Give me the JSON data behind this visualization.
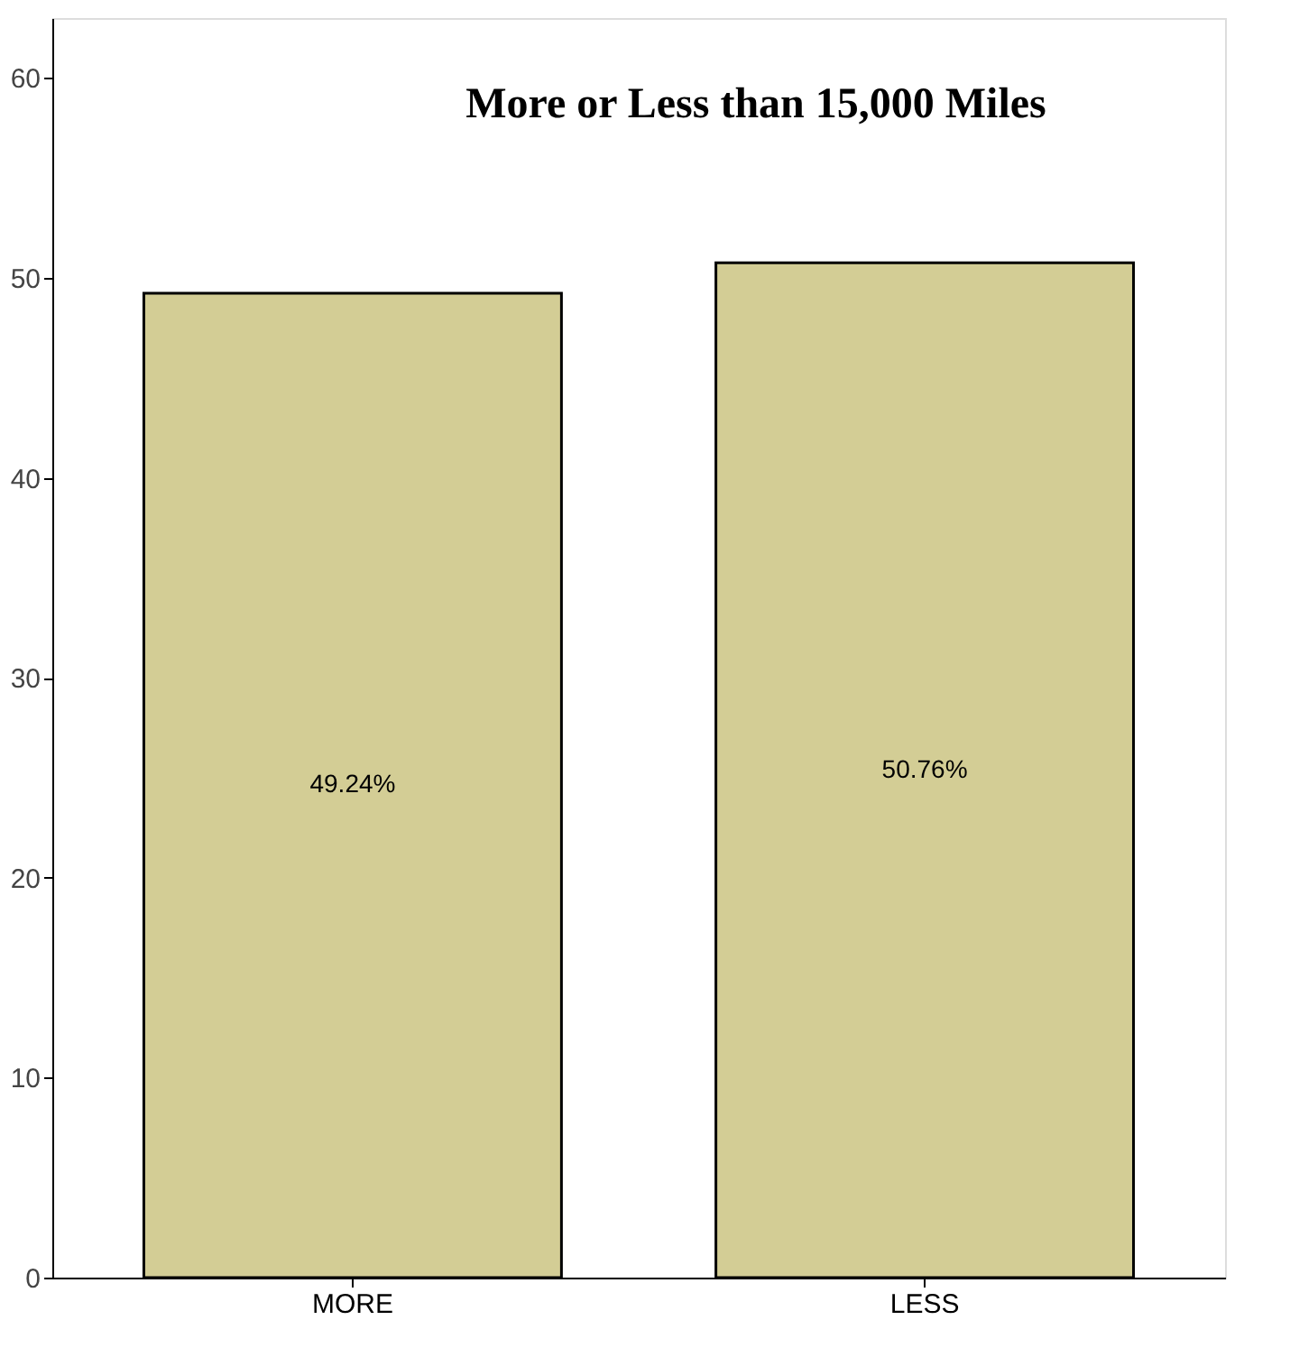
{
  "chart_data": {
    "type": "bar",
    "title": "More or Less than 15,000 Miles",
    "categories": [
      "MORE",
      "LESS"
    ],
    "values": [
      49.24,
      50.76
    ],
    "value_labels": [
      "49.24%",
      "50.76%"
    ],
    "color": "#d3cd95",
    "ylim": [
      0,
      63
    ],
    "yticks": [
      0,
      10,
      20,
      30,
      40,
      50,
      60
    ],
    "grid": false
  }
}
